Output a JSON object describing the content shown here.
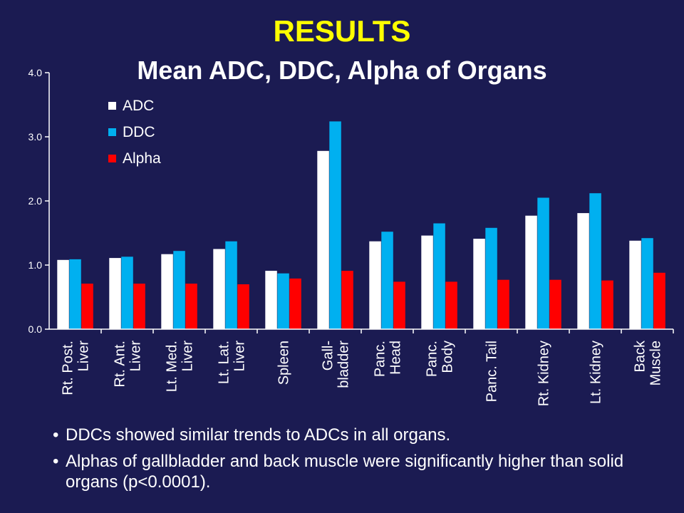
{
  "slide": {
    "title": "RESULTS",
    "bullets": [
      "DDCs showed similar trends to ADCs in all organs.",
      "Alphas of gallbladder and back muscle were significantly higher than solid organs (p<0.0001)."
    ]
  },
  "colors": {
    "background": "#1b1b52",
    "title": "#ffff00",
    "ADC": "#ffffff",
    "DDC": "#00b0f0",
    "Alpha": "#ff0000"
  },
  "chart_data": {
    "type": "bar",
    "title": "Mean ADC, DDC, Alpha of Organs",
    "xlabel": "",
    "ylabel": "",
    "ylim": [
      0,
      4
    ],
    "yticks": [
      "0.0",
      "1.0",
      "2.0",
      "3.0",
      "4.0"
    ],
    "grid": false,
    "legend": "top-left",
    "categories": [
      [
        "Rt. Post.",
        "Liver"
      ],
      [
        "Rt. Ant.",
        "Liver"
      ],
      [
        "Lt. Med.",
        "Liver"
      ],
      [
        "Lt. Lat.",
        "Liver"
      ],
      [
        "Spleen"
      ],
      [
        "Gall-",
        "bladder"
      ],
      [
        "Panc.",
        "Head"
      ],
      [
        "Panc.",
        "Body"
      ],
      [
        "Panc. Tail"
      ],
      [
        "Rt. Kidney"
      ],
      [
        "Lt. Kidney"
      ],
      [
        "Back",
        "Muscle"
      ]
    ],
    "series": [
      {
        "name": "ADC",
        "values": [
          1.08,
          1.11,
          1.17,
          1.25,
          0.91,
          2.78,
          1.37,
          1.46,
          1.41,
          1.77,
          1.81,
          1.38
        ]
      },
      {
        "name": "DDC",
        "values": [
          1.09,
          1.13,
          1.22,
          1.37,
          0.87,
          3.24,
          1.52,
          1.65,
          1.58,
          2.05,
          2.12,
          1.42
        ]
      },
      {
        "name": "Alpha",
        "values": [
          0.71,
          0.71,
          0.71,
          0.7,
          0.79,
          0.91,
          0.74,
          0.74,
          0.77,
          0.77,
          0.76,
          0.88
        ]
      }
    ]
  }
}
